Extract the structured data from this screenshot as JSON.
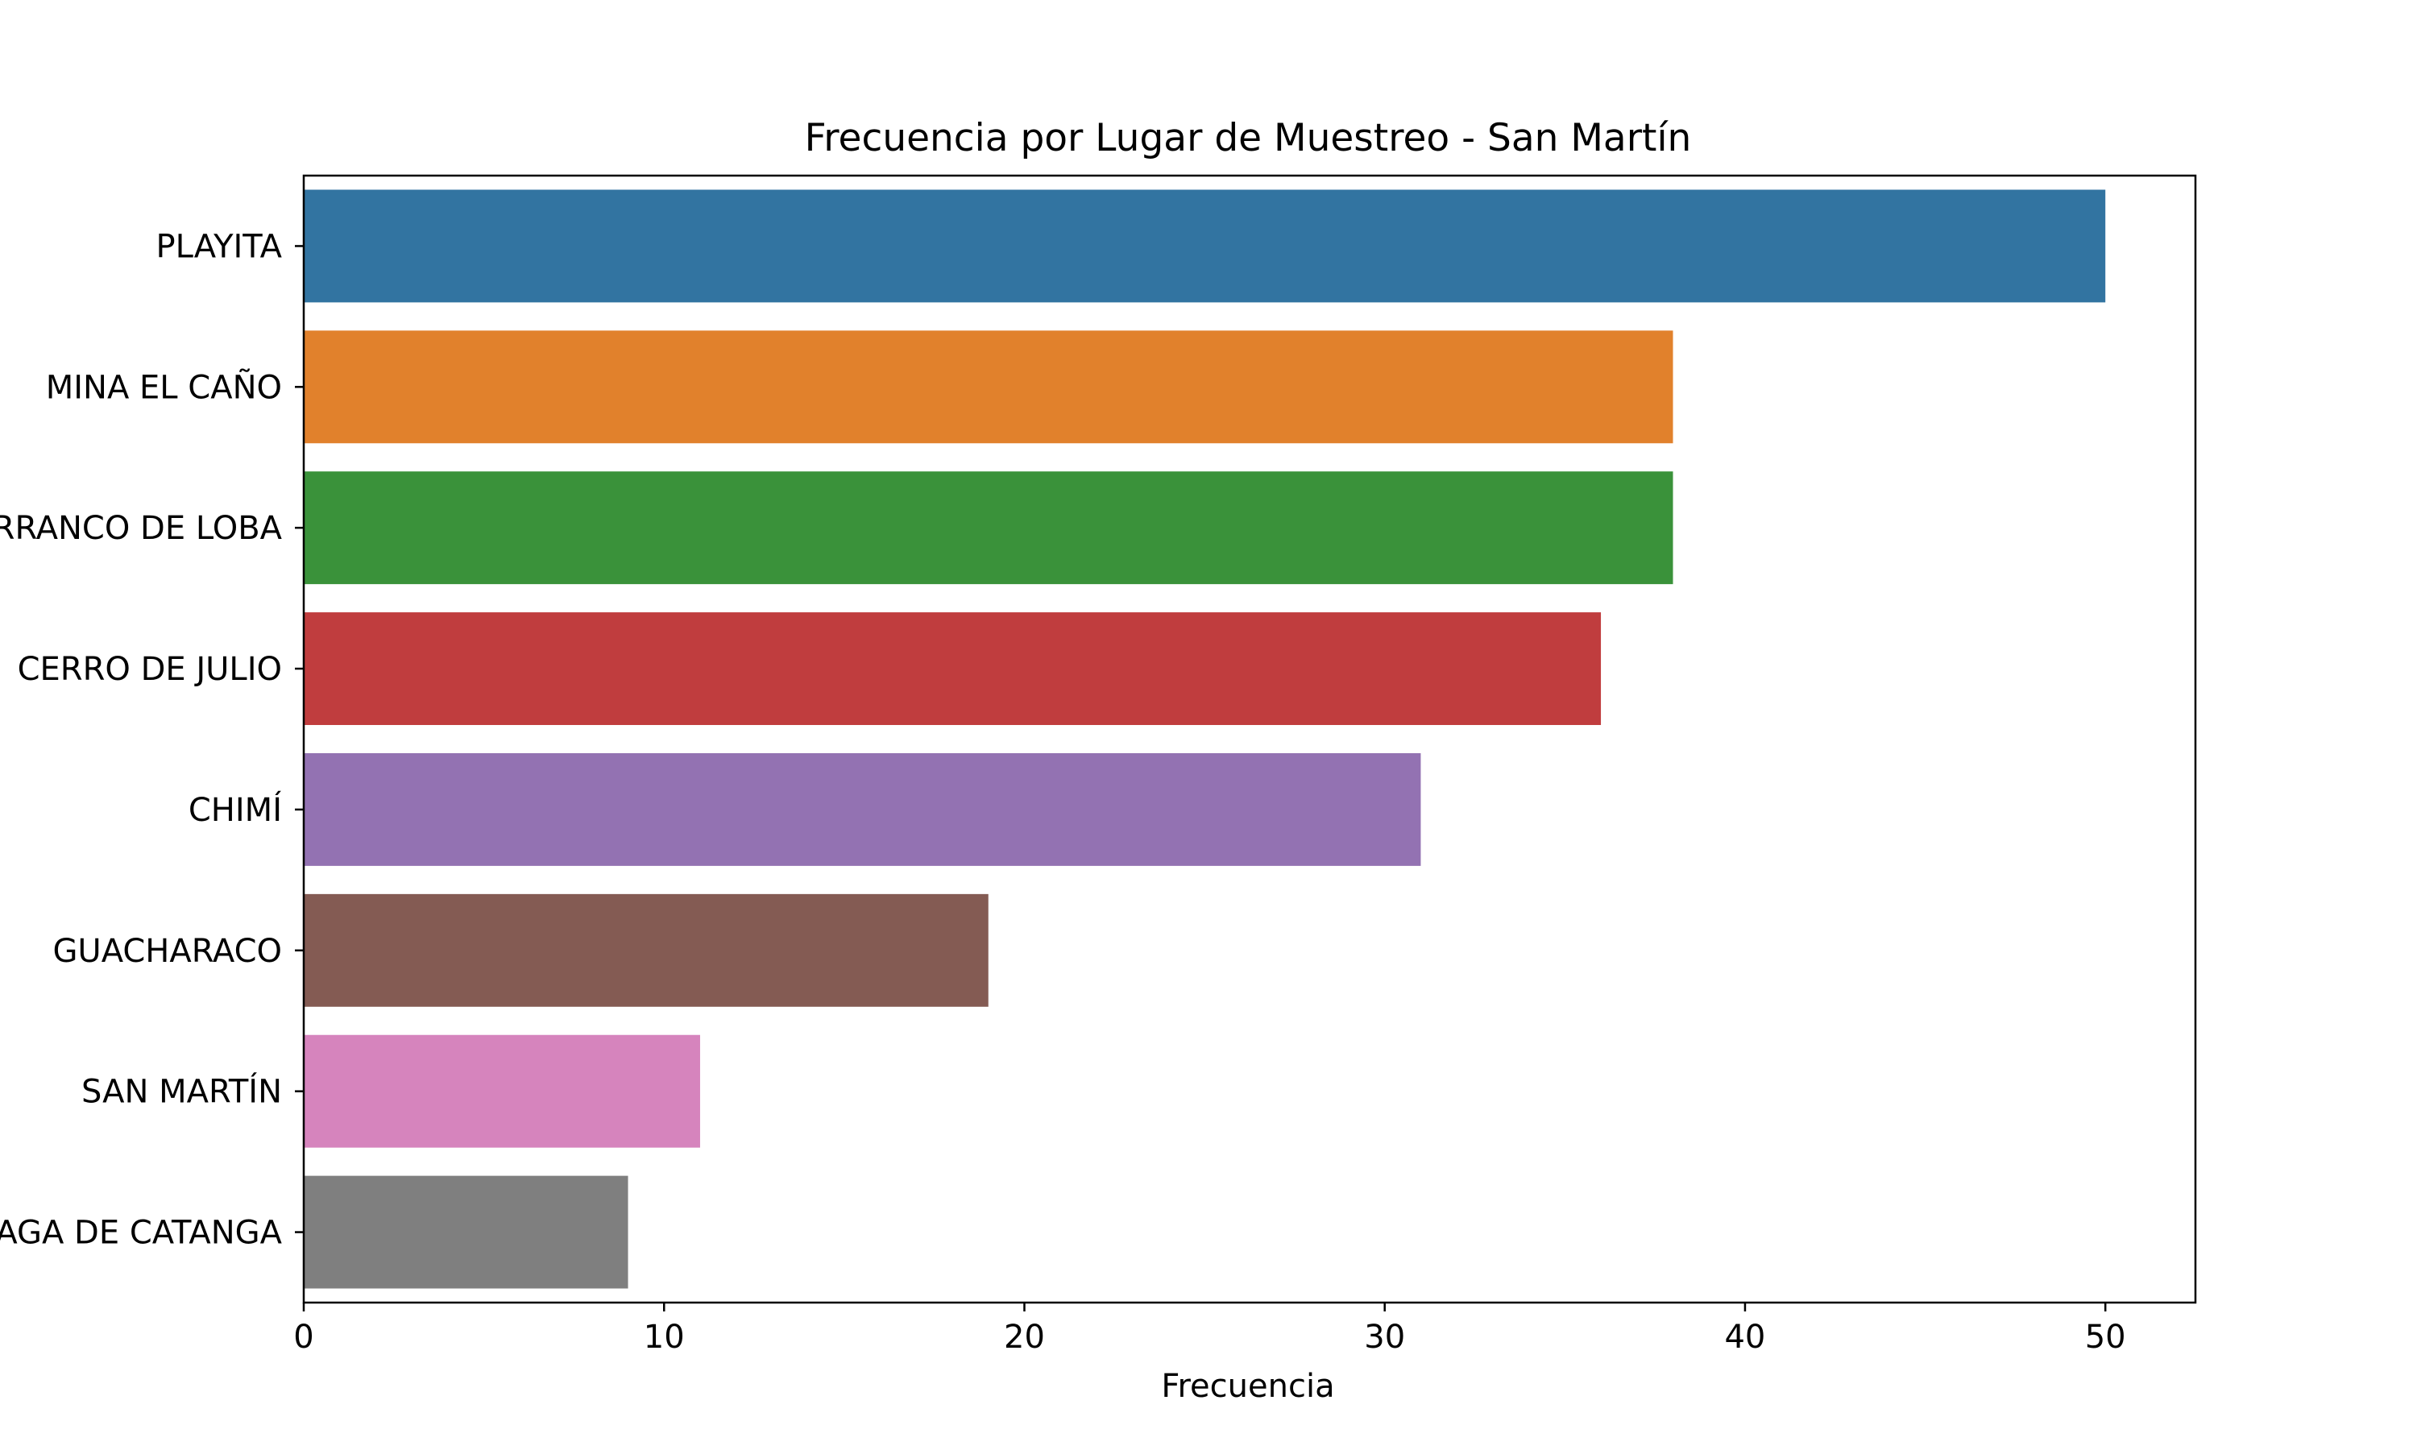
{
  "chart_data": {
    "type": "bar",
    "orientation": "horizontal",
    "title": "Frecuencia por Lugar de Muestreo - San Martín",
    "xlabel": "Frecuencia",
    "ylabel": "",
    "categories": [
      "PLAYITA",
      "MINA EL CAÑO",
      "BARRANCO DE LOBA",
      "CERRO DE JULIO",
      "CHIMÍ",
      "GUACHARACO",
      "SAN MARTÍN",
      "CIÉNAGA DE CATANGA"
    ],
    "values": [
      50,
      38,
      38,
      36,
      31,
      19,
      11,
      9
    ],
    "colors": [
      "#3274a1",
      "#e1812c",
      "#3a923a",
      "#c03d3e",
      "#9372b2",
      "#845b53",
      "#d684bd",
      "#7f7f7f"
    ],
    "xlim": [
      0,
      52.5
    ],
    "xticks": [
      0,
      10,
      20,
      30,
      40,
      50
    ],
    "grid": false,
    "legend": "none"
  }
}
